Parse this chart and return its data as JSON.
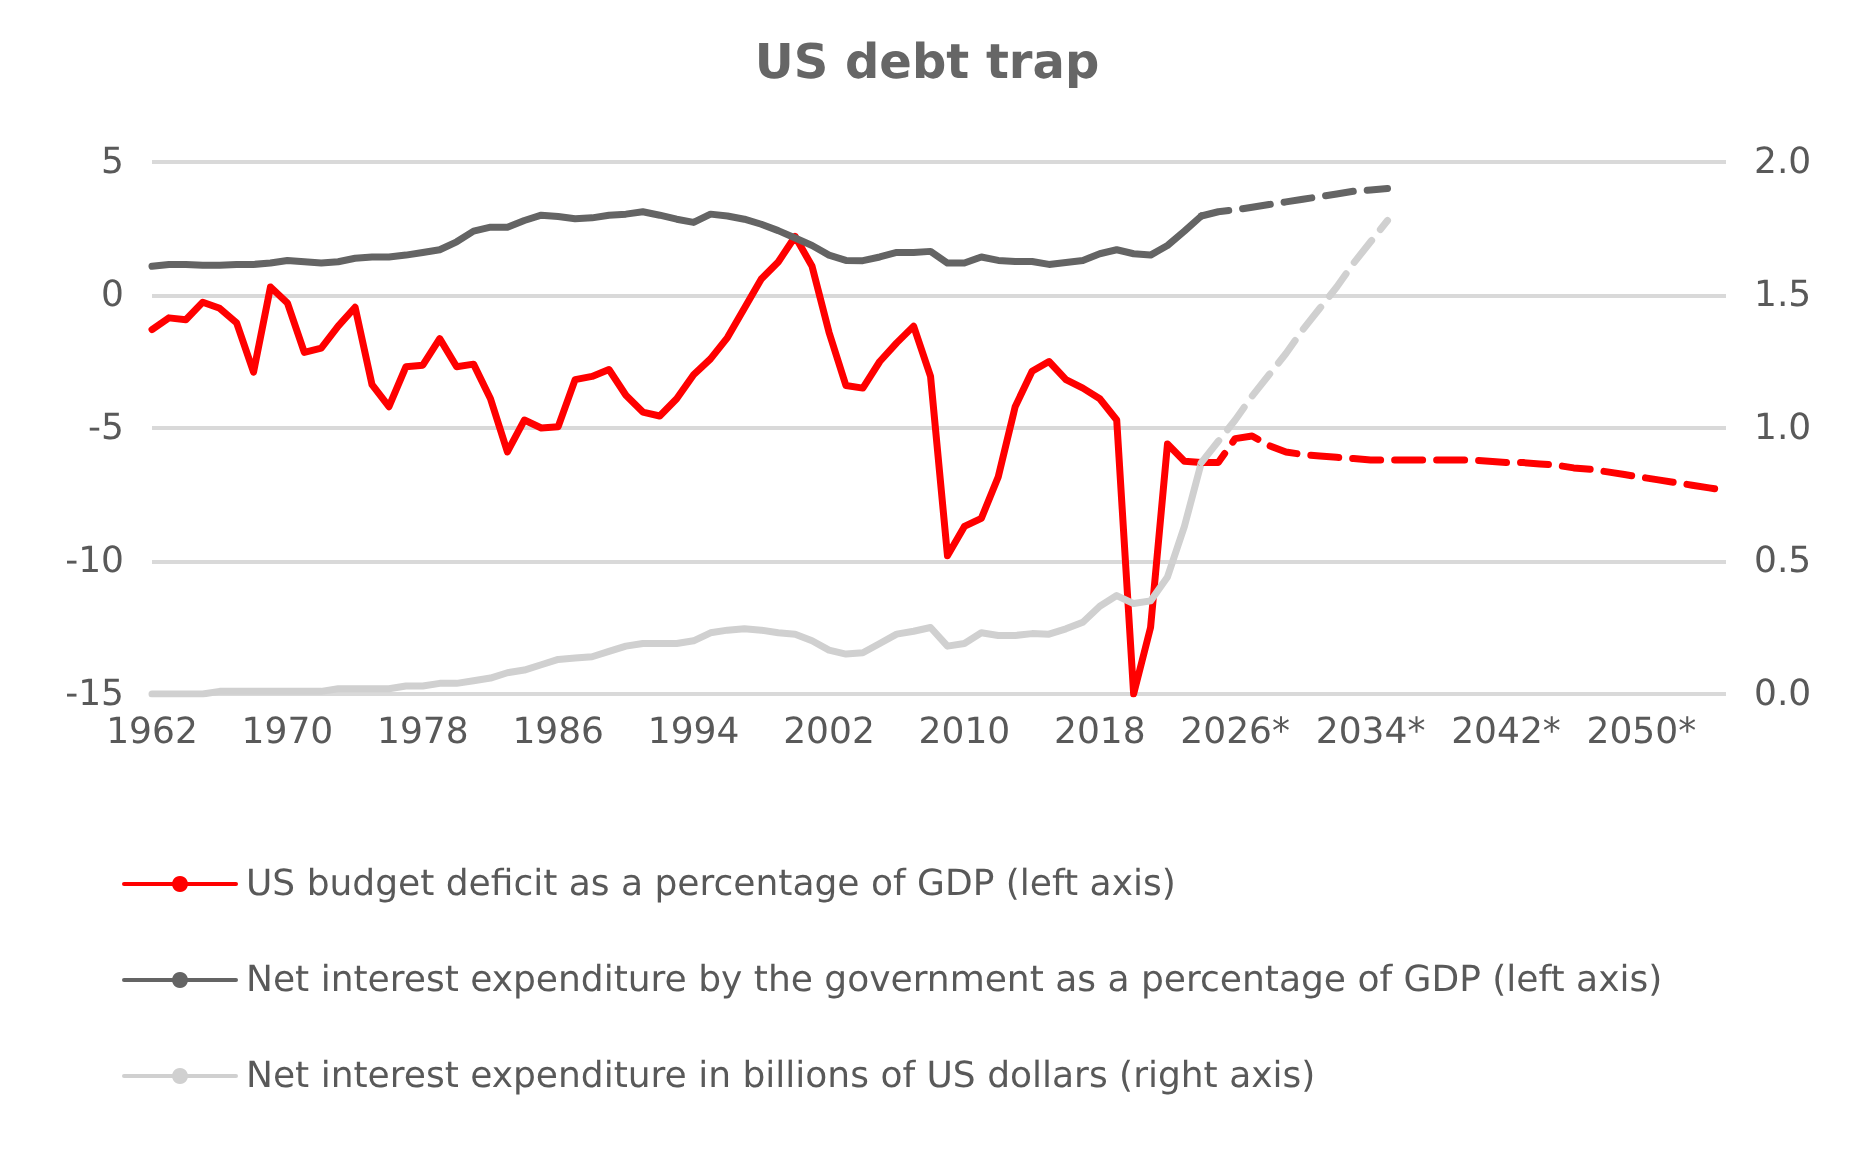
{
  "chart_data": {
    "type": "line",
    "title": "US debt trap",
    "categories": [
      "1962",
      null,
      null,
      null,
      null,
      null,
      null,
      null,
      "1970",
      null,
      null,
      null,
      null,
      null,
      null,
      null,
      "1978",
      null,
      null,
      null,
      null,
      null,
      null,
      null,
      "1986",
      null,
      null,
      null,
      null,
      null,
      null,
      null,
      "1994",
      null,
      null,
      null,
      null,
      null,
      null,
      null,
      "2002",
      null,
      null,
      null,
      null,
      null,
      null,
      null,
      "2010",
      null,
      null,
      null,
      null,
      null,
      null,
      null,
      "2018",
      null,
      null,
      null,
      null,
      null,
      null,
      null,
      "2026*",
      null,
      null,
      null,
      null,
      null,
      null,
      null,
      "2034*",
      null,
      null,
      null,
      null,
      null,
      null,
      null,
      "2042*",
      null,
      null,
      null,
      null,
      null,
      null,
      null,
      "2050*",
      null,
      null,
      null,
      null,
      null
    ],
    "series": [
      {
        "name": "US budget deficit as a percentage of GDP (left axis)",
        "color": "#ff0000",
        "line_style": "solid",
        "values": [
          -1.3,
          -0.86,
          -0.93,
          -0.27,
          -0.5,
          -1.05,
          -2.9,
          0.3,
          -0.3,
          -2.16,
          -2.0,
          -1.17,
          -0.46,
          -3.37,
          -4.2,
          -2.7,
          -2.64,
          -1.64,
          -2.7,
          -2.6,
          -3.9,
          -5.9,
          -4.7,
          -5.0,
          -4.95,
          -3.18,
          -3.06,
          -2.8,
          -3.77,
          -4.4,
          -4.55,
          -3.9,
          -3.0,
          -2.4,
          -1.6,
          -0.5,
          0.6,
          1.24,
          2.2,
          1.08,
          -1.4,
          -3.4,
          -3.5,
          -2.5,
          -1.8,
          -1.17,
          -3.06,
          -9.8,
          -8.7,
          -8.4,
          -6.84,
          -4.2,
          -2.87,
          -2.5,
          -3.18,
          -3.5,
          -3.9,
          -4.7,
          -15.0,
          -12.5,
          -5.6,
          -6.25,
          -6.3,
          null,
          null,
          null,
          null,
          null,
          null,
          null,
          null,
          null,
          null,
          null,
          null,
          null,
          null,
          null,
          null,
          null,
          null,
          null,
          null,
          null,
          null,
          null,
          null,
          null,
          null,
          null,
          null,
          null,
          null,
          null
        ]
      },
      {
        "name": "Net interest expenditure by the government as a percentage of GDP (left axis)",
        "color": "#646464",
        "line_style": "solid",
        "values": [
          1.08,
          1.15,
          1.15,
          1.12,
          1.12,
          1.15,
          1.15,
          1.2,
          1.3,
          1.25,
          1.2,
          1.25,
          1.38,
          1.43,
          1.43,
          1.5,
          1.6,
          1.7,
          2.0,
          2.4,
          2.55,
          2.55,
          2.8,
          3.0,
          2.95,
          2.87,
          2.9,
          3.0,
          3.04,
          3.13,
          3.0,
          2.85,
          2.73,
          3.04,
          2.97,
          2.85,
          2.66,
          2.42,
          2.14,
          1.86,
          1.5,
          1.3,
          1.29,
          1.43,
          1.6,
          1.6,
          1.64,
          1.2,
          1.2,
          1.43,
          1.3,
          1.26,
          1.26,
          1.15,
          1.22,
          1.3,
          1.55,
          1.7,
          1.55,
          1.5,
          1.86,
          2.4,
          2.97,
          null,
          null,
          null,
          null,
          null,
          null,
          null,
          null,
          null,
          null,
          null,
          null,
          null,
          null,
          null,
          null,
          null,
          null,
          null,
          null,
          null,
          null,
          null,
          null,
          null,
          null,
          null,
          null,
          null,
          null,
          null
        ]
      },
      {
        "name": "Net interest expenditure in billions of US dollars (right axis)",
        "color": "#d0d0d0",
        "line_style": "solid",
        "axis": "y2",
        "values": [
          0,
          0,
          0,
          0,
          0.01,
          0.01,
          0.01,
          0.01,
          0.01,
          0.01,
          0.01,
          0.02,
          0.02,
          0.02,
          0.02,
          0.03,
          0.03,
          0.04,
          0.04,
          0.05,
          0.06,
          0.08,
          0.09,
          0.11,
          0.13,
          0.135,
          0.14,
          0.16,
          0.18,
          0.19,
          0.19,
          0.19,
          0.2,
          0.23,
          0.24,
          0.245,
          0.24,
          0.23,
          0.225,
          0.2,
          0.165,
          0.15,
          0.155,
          0.19,
          0.225,
          0.236,
          0.25,
          0.18,
          0.19,
          0.23,
          0.22,
          0.22,
          0.227,
          0.225,
          0.245,
          0.27,
          0.33,
          0.37,
          0.34,
          0.35,
          0.44,
          0.63,
          0.87,
          null,
          null,
          null,
          null,
          null,
          null,
          null,
          null,
          null,
          null,
          null,
          null,
          null,
          null,
          null,
          null,
          null,
          null,
          null,
          null,
          null,
          null,
          null,
          null,
          null,
          null,
          null,
          null,
          null,
          null,
          null
        ]
      },
      {
        "color": "#ff0000",
        "line_style": "dashed",
        "values": [
          null,
          null,
          null,
          null,
          null,
          null,
          null,
          null,
          null,
          null,
          null,
          null,
          null,
          null,
          null,
          null,
          null,
          null,
          null,
          null,
          null,
          null,
          null,
          null,
          null,
          null,
          null,
          null,
          null,
          null,
          null,
          null,
          null,
          null,
          null,
          null,
          null,
          null,
          null,
          null,
          null,
          null,
          null,
          null,
          null,
          null,
          null,
          null,
          null,
          null,
          null,
          null,
          null,
          null,
          null,
          null,
          null,
          null,
          null,
          null,
          null,
          null,
          -6.3,
          -6.3,
          -5.4,
          -5.3,
          -5.66,
          -5.9,
          -6.0,
          -6.05,
          -6.1,
          -6.15,
          -6.2,
          -6.2,
          -6.2,
          -6.2,
          -6.2,
          -6.2,
          -6.2,
          -6.25,
          -6.3,
          -6.3,
          -6.35,
          -6.4,
          -6.5,
          -6.55,
          -6.65,
          -6.75,
          -6.85,
          -6.95,
          -7.05,
          -7.15,
          -7.25,
          -7.35
        ]
      },
      {
        "color": "#646464",
        "line_style": "dashed",
        "values": [
          null,
          null,
          null,
          null,
          null,
          null,
          null,
          null,
          null,
          null,
          null,
          null,
          null,
          null,
          null,
          null,
          null,
          null,
          null,
          null,
          null,
          null,
          null,
          null,
          null,
          null,
          null,
          null,
          null,
          null,
          null,
          null,
          null,
          null,
          null,
          null,
          null,
          null,
          null,
          null,
          null,
          null,
          null,
          null,
          null,
          null,
          null,
          null,
          null,
          null,
          null,
          null,
          null,
          null,
          null,
          null,
          null,
          null,
          null,
          null,
          null,
          null,
          2.97,
          3.13,
          3.2,
          3.3,
          3.4,
          3.5,
          3.6,
          3.7,
          3.8,
          3.9,
          3.95,
          4.0,
          null,
          null,
          null,
          null,
          null,
          null,
          null,
          null,
          null,
          null,
          null,
          null,
          null,
          null,
          null,
          null,
          null,
          null,
          null,
          null
        ]
      },
      {
        "color": "#d0d0d0",
        "line_style": "dashed",
        "axis": "y2",
        "values": [
          null,
          null,
          null,
          null,
          null,
          null,
          null,
          null,
          null,
          null,
          null,
          null,
          null,
          null,
          null,
          null,
          null,
          null,
          null,
          null,
          null,
          null,
          null,
          null,
          null,
          null,
          null,
          null,
          null,
          null,
          null,
          null,
          null,
          null,
          null,
          null,
          null,
          null,
          null,
          null,
          null,
          null,
          null,
          null,
          null,
          null,
          null,
          null,
          null,
          null,
          null,
          null,
          null,
          null,
          null,
          null,
          null,
          null,
          null,
          null,
          null,
          null,
          0.87,
          0.95,
          1.03,
          1.12,
          1.2,
          1.28,
          1.37,
          1.45,
          1.53,
          1.62,
          1.7,
          1.78,
          null,
          null,
          null,
          null,
          null,
          null,
          null,
          null,
          null,
          null,
          null,
          null,
          null,
          null,
          null,
          null,
          null,
          null,
          null,
          null
        ]
      }
    ],
    "ylim": [
      -15,
      5
    ],
    "yticks": [
      -15,
      -10,
      -5,
      0,
      5
    ],
    "y2lim": [
      0,
      2
    ],
    "y2ticks": [
      {
        "value": 0,
        "label": "0.0"
      },
      {
        "value": 0.5,
        "label": "0.5"
      },
      {
        "value": 1,
        "label": "1.0"
      },
      {
        "value": 1.5,
        "label": "1.5"
      },
      {
        "value": 2,
        "label": "2.0"
      }
    ],
    "grid": "y",
    "legend": "bottom",
    "marker": "none"
  }
}
